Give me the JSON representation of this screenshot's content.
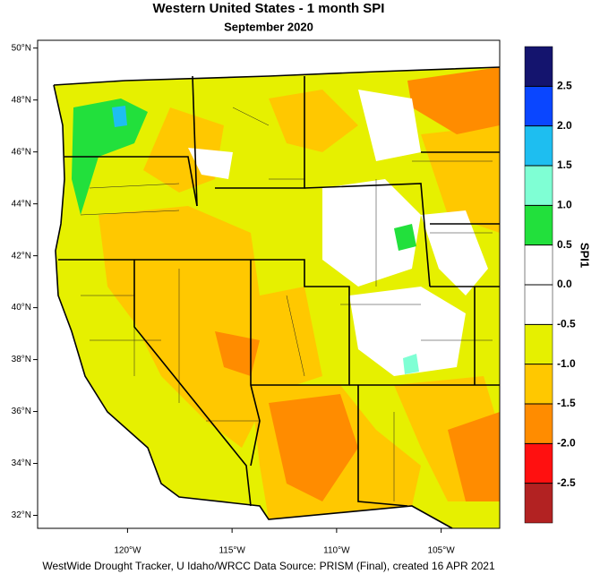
{
  "title": "Western United States - 1 month SPI",
  "subtitle": "September 2020",
  "map": {
    "lonlim": [
      -124.3,
      -102.2
    ],
    "latlim": [
      31.5,
      50.3
    ],
    "lat_ticks": [
      {
        "value": 50,
        "label": "50°N"
      },
      {
        "value": 48,
        "label": "48°N"
      },
      {
        "value": 46,
        "label": "46°N"
      },
      {
        "value": 44,
        "label": "44°N"
      },
      {
        "value": 42,
        "label": "42°N"
      },
      {
        "value": 40,
        "label": "40°N"
      },
      {
        "value": 38,
        "label": "38°N"
      },
      {
        "value": 36,
        "label": "36°N"
      },
      {
        "value": 34,
        "label": "34°N"
      },
      {
        "value": 32,
        "label": "32°N"
      }
    ],
    "lon_ticks": [
      {
        "value": -120,
        "label": "120°W"
      },
      {
        "value": -115,
        "label": "115°W"
      },
      {
        "value": -110,
        "label": "110°W"
      },
      {
        "value": -105,
        "label": "105°W"
      }
    ]
  },
  "colorbar": {
    "title": "SPI1",
    "lim": [
      -3,
      3
    ],
    "colors": [
      "#b22222",
      "#ff1010",
      "#ff8c00",
      "#ffc800",
      "#e6f000",
      "#ffffff",
      "#ffffff",
      "#22e03c",
      "#7fffd4",
      "#1ebef0",
      "#0a46ff",
      "#14146e"
    ],
    "ticks": [
      {
        "value": 2.5,
        "label": "2.5"
      },
      {
        "value": 2,
        "label": "2.0"
      },
      {
        "value": 1.5,
        "label": "1.5"
      },
      {
        "value": 1,
        "label": "1.0"
      },
      {
        "value": 0.5,
        "label": "0.5"
      },
      {
        "value": 0,
        "label": "0.0"
      },
      {
        "value": -0.5,
        "label": "-0.5"
      },
      {
        "value": -1,
        "label": "-1.0"
      },
      {
        "value": -1.5,
        "label": "-1.5"
      },
      {
        "value": -2,
        "label": "-2.0"
      },
      {
        "value": -2.5,
        "label": "-2.5"
      }
    ]
  },
  "footer": "WestWide Drought Tracker, U Idaho/WRCC Data Source: PRISM (Final), created 16 APR 2021"
}
